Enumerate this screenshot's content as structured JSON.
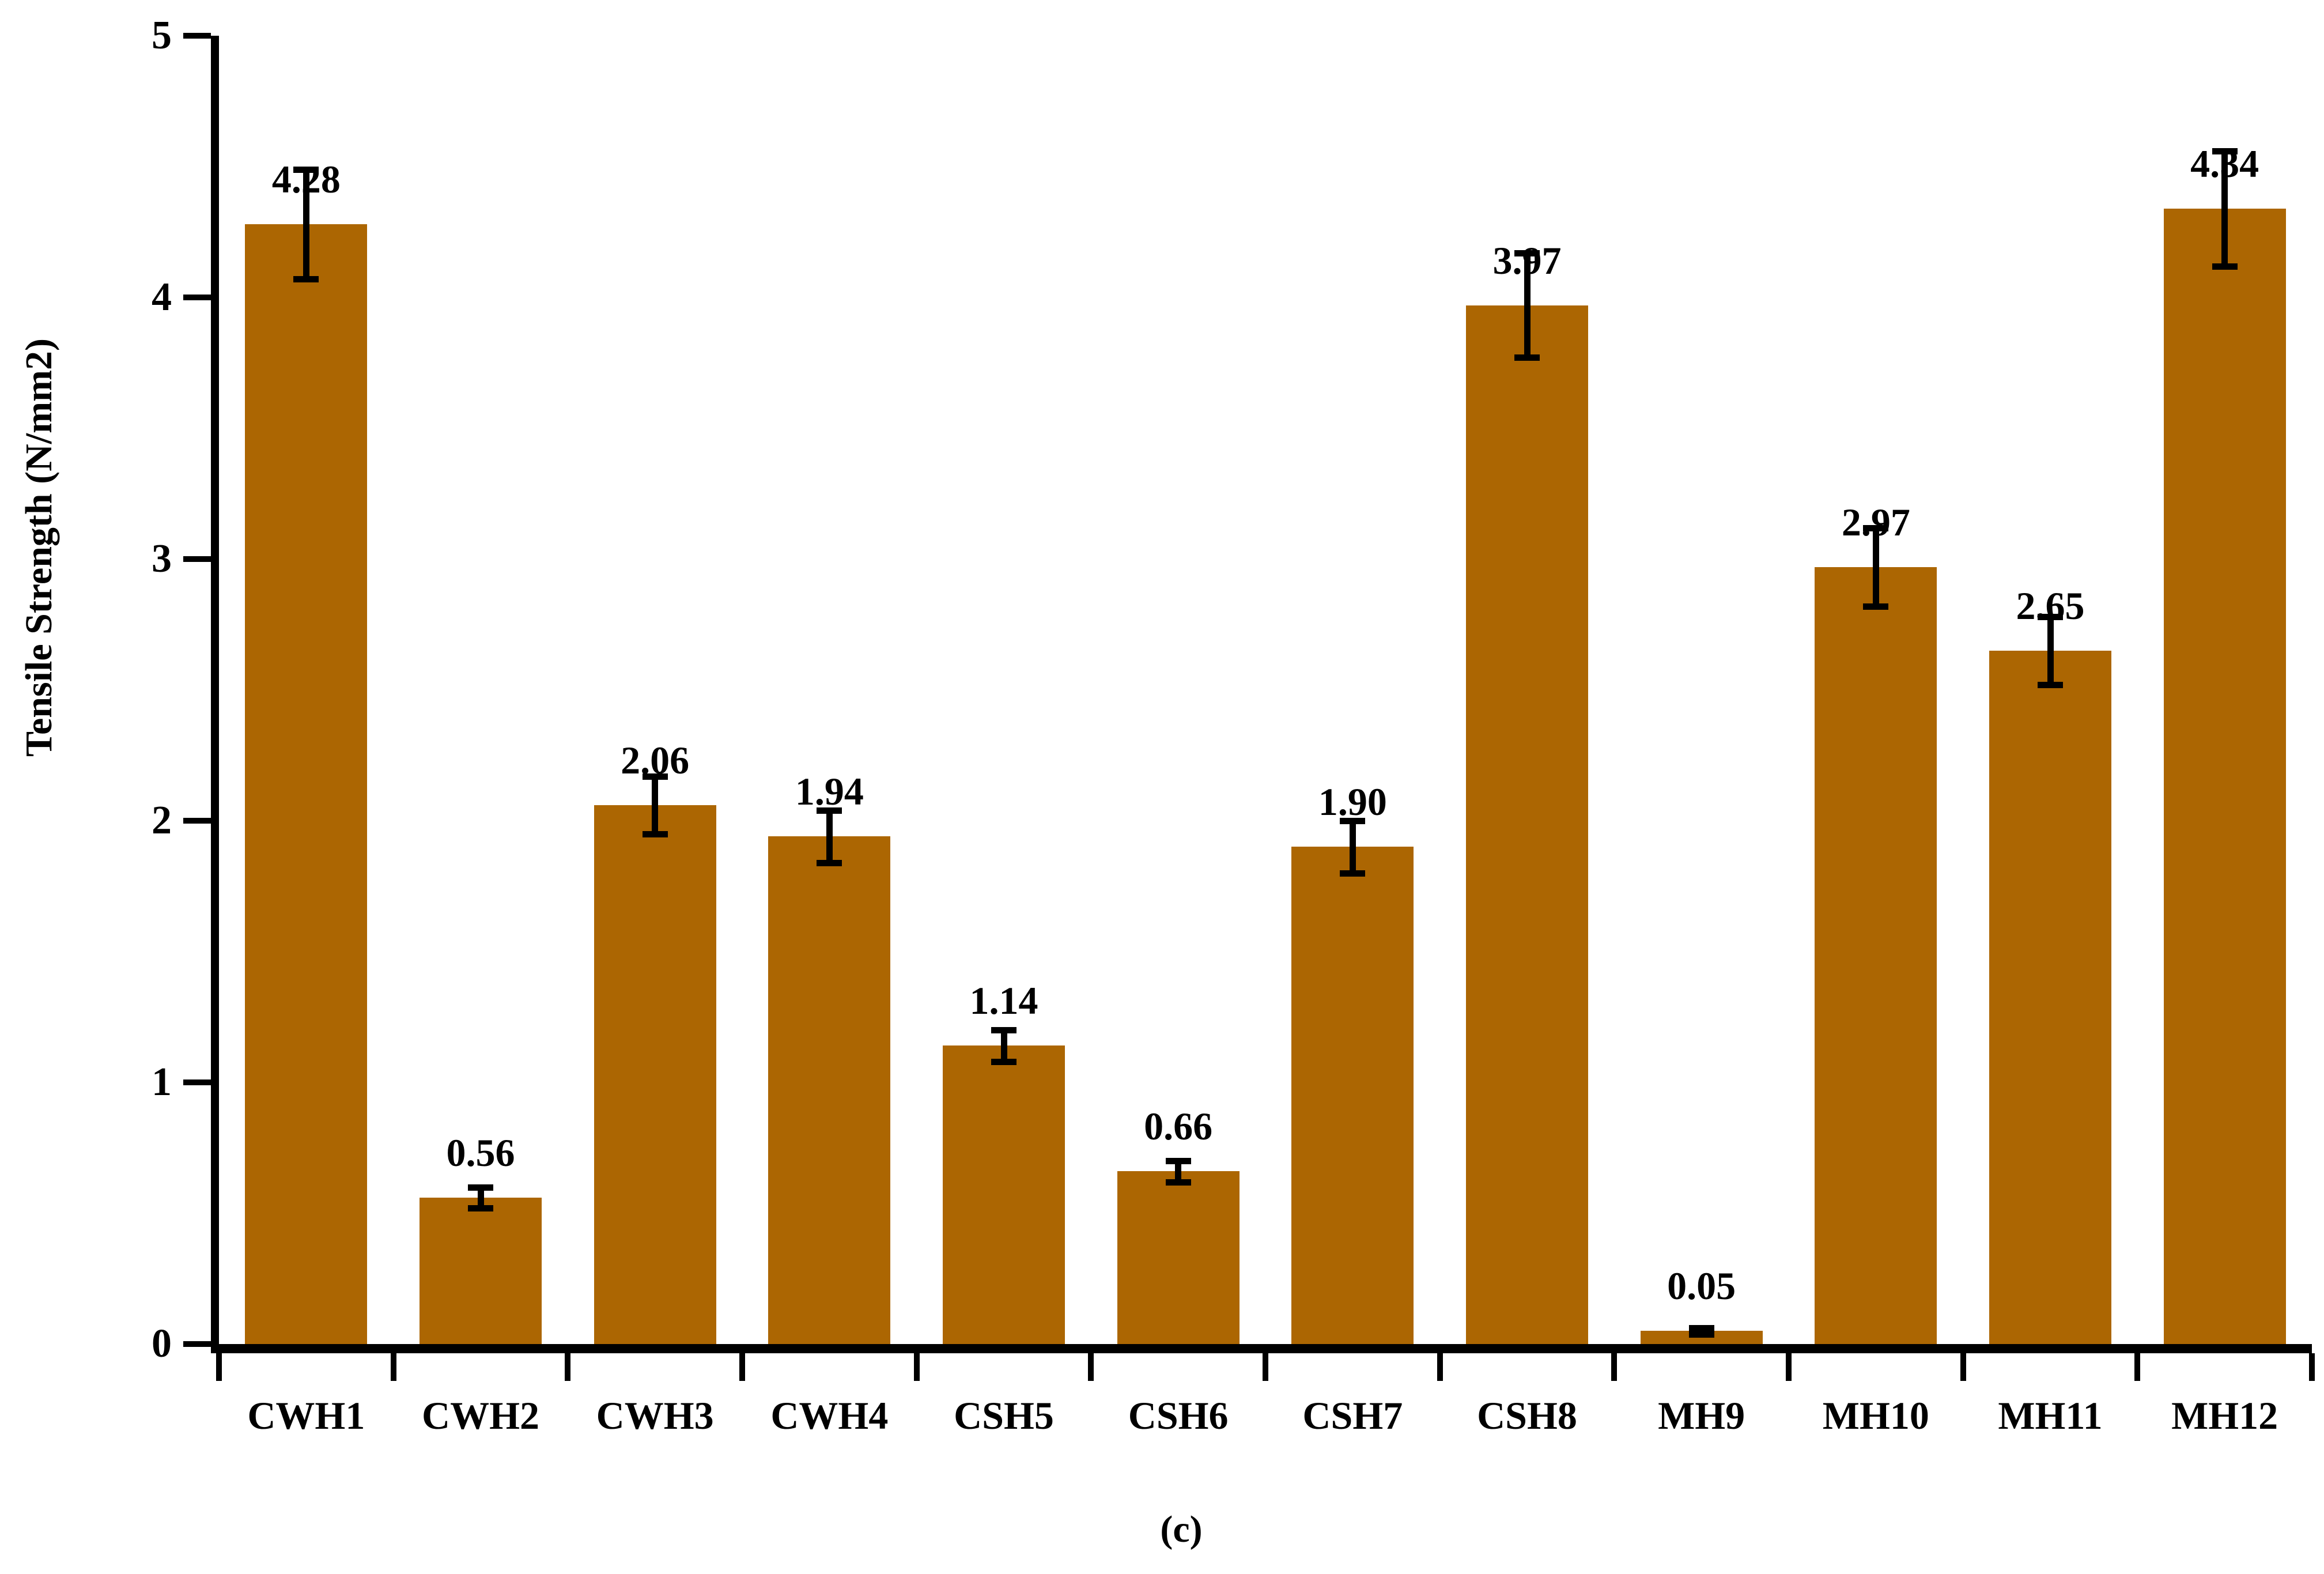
{
  "chart_data": {
    "type": "bar",
    "title": "",
    "xlabel": "",
    "ylabel": "Tensile Strength (N/mm2)",
    "caption": "(c)",
    "ylim": [
      0,
      5
    ],
    "yticks": [
      0,
      1,
      2,
      3,
      4,
      5
    ],
    "grid": false,
    "legend_position": "none",
    "categories": [
      "CWH1",
      "CWH2",
      "CWH3",
      "CWH4",
      "CSH5",
      "CSH6",
      "CSH7",
      "CSH8",
      "MH9",
      "MH10",
      "MH11",
      "MH12"
    ],
    "values": [
      4.28,
      0.56,
      2.06,
      1.94,
      1.14,
      0.66,
      1.9,
      3.97,
      0.05,
      2.97,
      2.65,
      4.34
    ],
    "value_labels": [
      "4.28",
      "0.56",
      "2.06",
      "1.94",
      "1.14",
      "0.66",
      "1.90",
      "3.97",
      "0.05",
      "2.97",
      "2.65",
      "4.34"
    ],
    "error_bars": [
      0.21,
      0.04,
      0.11,
      0.1,
      0.06,
      0.04,
      0.1,
      0.2,
      0.012,
      0.15,
      0.13,
      0.22
    ],
    "colors": {
      "bar_fill": "#AC6602",
      "axis": "#000000",
      "text": "#000000",
      "background": "#FFFFFF"
    }
  }
}
